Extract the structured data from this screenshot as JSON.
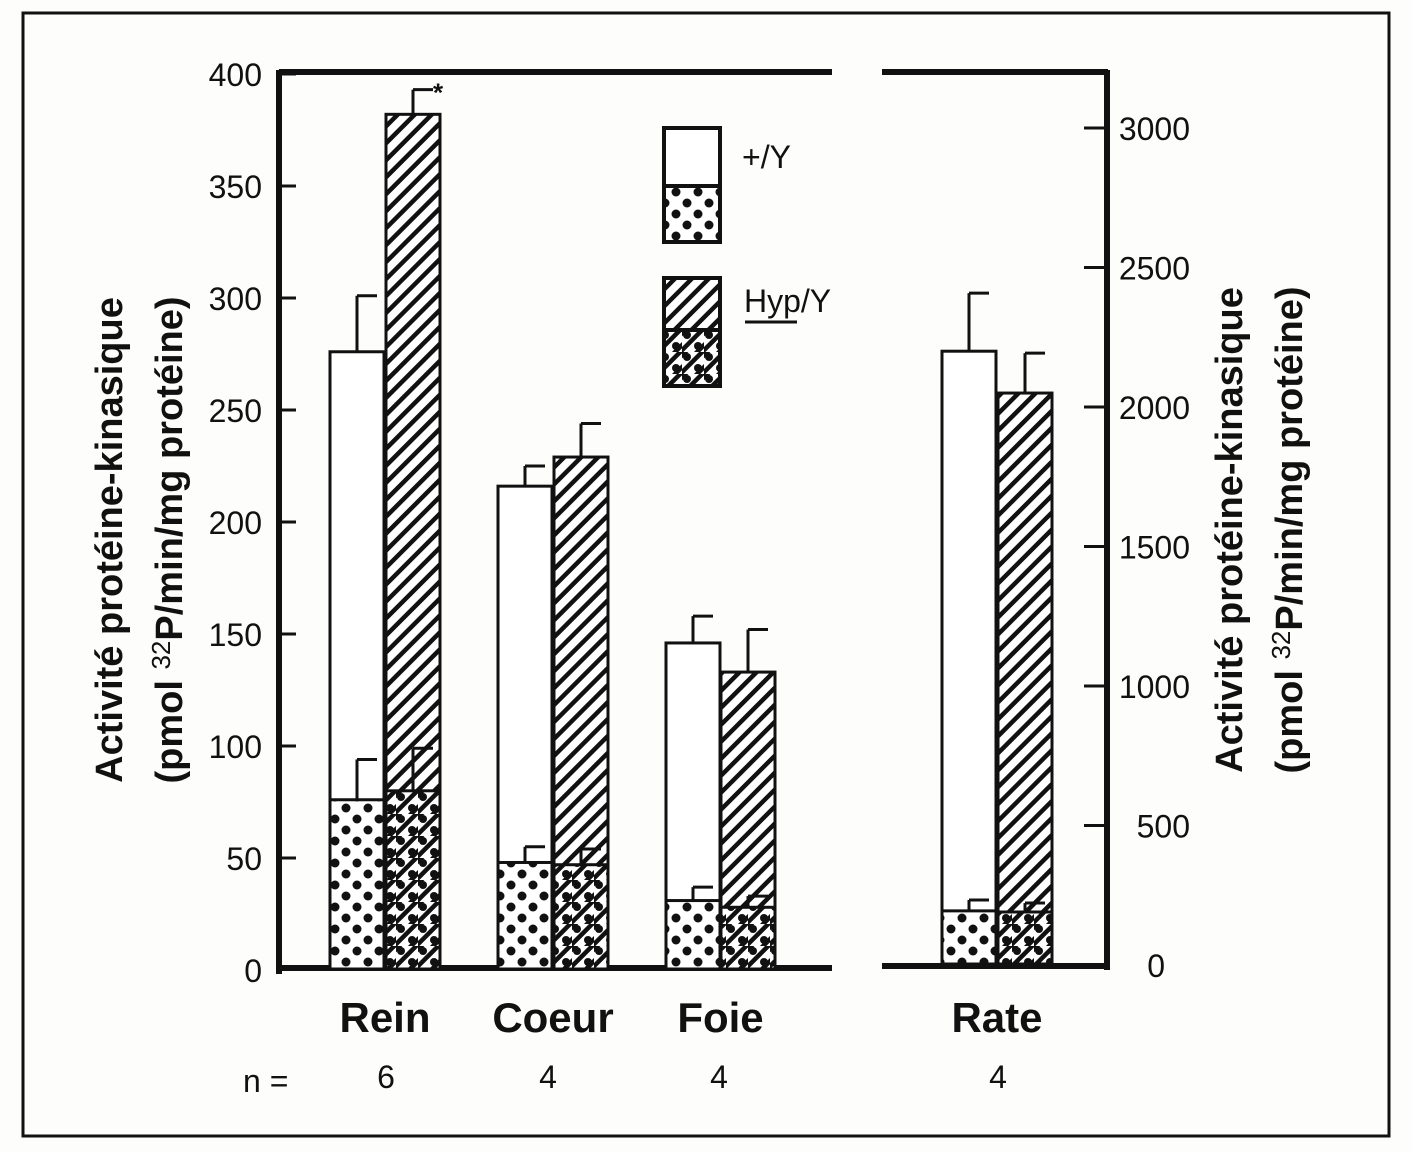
{
  "chart_data": {
    "type": "bar",
    "stacked_overlay": true,
    "categories": [
      "Rein",
      "Coeur",
      "Foie",
      "Rate"
    ],
    "n_label": "n =",
    "n": [
      "6",
      "4",
      "4",
      "4"
    ],
    "ylabel_line1": "Activité protéine-kinasique",
    "ylabel_line2_pre": "(pmol ",
    "ylabel_sup": "32",
    "ylabel_line2_post": "P/min/mg protéine)",
    "left_axis": {
      "ylim": [
        0,
        400
      ],
      "ticks": [
        0,
        50,
        100,
        150,
        200,
        250,
        300,
        350,
        400
      ],
      "applies_to": [
        "Rein",
        "Coeur",
        "Foie"
      ]
    },
    "right_axis": {
      "ylim": [
        0,
        3000
      ],
      "ticks": [
        0,
        500,
        1000,
        1500,
        2000,
        2500,
        3000
      ],
      "applies_to": [
        "Rate"
      ]
    },
    "legend": [
      {
        "label": "+/Y",
        "key": "wt"
      },
      {
        "label": "Hyp/Y",
        "key": "hyp",
        "underline": "Hyp"
      }
    ],
    "legend_placement": "top-center",
    "series": [
      {
        "name": "+/Y total",
        "values": [
          276,
          216,
          146,
          2200
        ],
        "errors": [
          25,
          9,
          12,
          208
        ]
      },
      {
        "name": "+/Y basal (dotted)",
        "values": [
          76,
          48,
          31,
          194
        ],
        "errors": [
          18,
          7,
          6,
          39
        ]
      },
      {
        "name": "Hyp/Y total",
        "values": [
          382,
          229,
          133,
          2050
        ],
        "errors": [
          11,
          15,
          19,
          143
        ],
        "annotations": [
          "*",
          "",
          "",
          ""
        ]
      },
      {
        "name": "Hyp/Y basal (dotted hatched)",
        "values": [
          80,
          47,
          28,
          190
        ],
        "errors": [
          19,
          7,
          5,
          32
        ]
      }
    ],
    "colors": {
      "ink": "#111111",
      "paper": "#fdfdfb"
    }
  }
}
